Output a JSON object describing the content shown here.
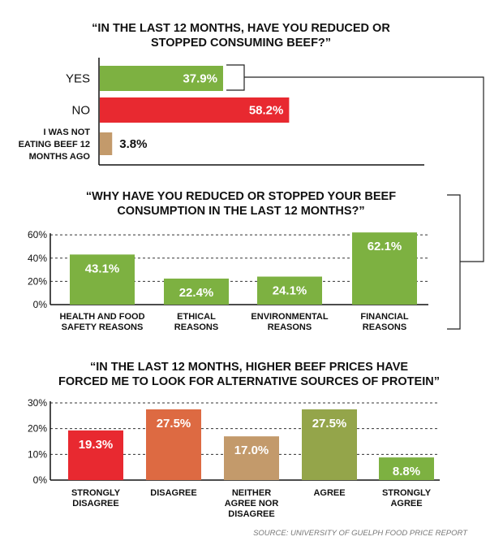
{
  "chart_data": [
    {
      "type": "bar",
      "orientation": "horizontal",
      "title_lines": [
        "“IN THE LAST 12 MONTHS, HAVE YOU REDUCED OR",
        "STOPPED CONSUMING BEEF?”"
      ],
      "categories": [
        [
          "YES"
        ],
        [
          "NO"
        ],
        [
          "I WAS NOT",
          "EATING BEEF 12",
          "MONTHS AGO"
        ]
      ],
      "values": [
        37.9,
        58.2,
        3.8
      ],
      "value_labels": [
        "37.9%",
        "58.2%",
        "3.8%"
      ],
      "colors": [
        "#7db141",
        "#e82930",
        "#c39a6b"
      ],
      "xlim": [
        0,
        100
      ],
      "grid": false
    },
    {
      "type": "bar",
      "title_lines": [
        "“WHY HAVE YOU REDUCED OR STOPPED YOUR BEEF",
        "CONSUMPTION IN THE LAST 12 MONTHS?”"
      ],
      "categories": [
        [
          "HEALTH AND FOOD",
          "SAFETY REASONS"
        ],
        [
          "ETHICAL",
          "REASONS"
        ],
        [
          "ENVIRONMENTAL",
          "REASONS"
        ],
        [
          "FINANCIAL",
          "REASONS"
        ]
      ],
      "values": [
        43.1,
        22.4,
        24.1,
        62.1
      ],
      "value_labels": [
        "43.1%",
        "22.4%",
        "24.1%",
        "62.1%"
      ],
      "color": "#7db141",
      "ylim": [
        0,
        65
      ],
      "yticks": [
        0,
        20,
        40,
        60
      ],
      "ytick_labels": [
        "0%",
        "20%",
        "40%",
        "60%"
      ],
      "grid": true
    },
    {
      "type": "bar",
      "title_lines": [
        "“IN THE LAST 12 MONTHS, HIGHER BEEF PRICES HAVE",
        "FORCED ME TO LOOK FOR ALTERNATIVE SOURCES OF PROTEIN”"
      ],
      "categories": [
        [
          "STRONGLY",
          "DISAGREE"
        ],
        [
          "DISAGREE"
        ],
        [
          "NEITHER",
          "AGREE NOR",
          "DISAGREE"
        ],
        [
          "AGREE"
        ],
        [
          "STRONGLY",
          "AGREE"
        ]
      ],
      "values": [
        19.3,
        27.5,
        17.0,
        27.5,
        8.8
      ],
      "value_labels": [
        "19.3%",
        "27.5%",
        "17.0%",
        "27.5%",
        "8.8%"
      ],
      "colors": [
        "#e82930",
        "#dd6a42",
        "#c39a6b",
        "#94a54a",
        "#7db141"
      ],
      "ylim": [
        0,
        30
      ],
      "yticks": [
        0,
        10,
        20,
        30
      ],
      "ytick_labels": [
        "0%",
        "10%",
        "20%",
        "30%"
      ],
      "grid": true
    }
  ],
  "source": "SOURCE: UNIVERSITY OF GUELPH FOOD PRICE REPORT"
}
